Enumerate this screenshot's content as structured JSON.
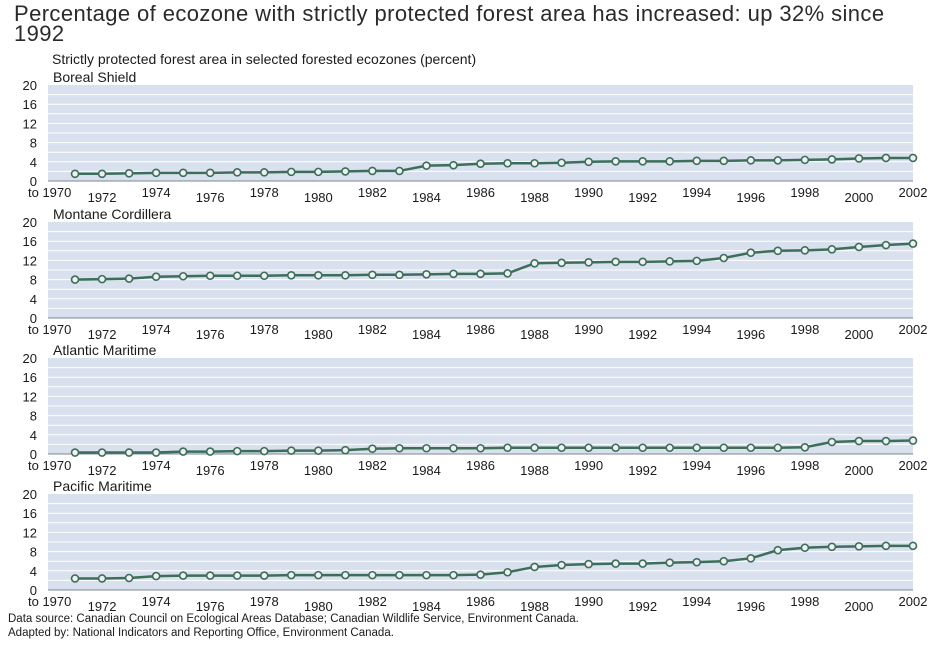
{
  "title": "Percentage of ecozone with strictly protected forest area has increased: up 32% since 1992",
  "subtitle": "Strictly protected forest area in selected forested ecozones (percent)",
  "footer": {
    "source": "Data source: Canadian Council on Ecological Areas Database; Canadian Wildlife Service, Environment Canada.",
    "adapted": "Adapted by: National Indicators and Reporting Office, Environment Canada."
  },
  "colors": {
    "panel_bg": "#d9e0ee",
    "grid": "#ffffff",
    "line": "#3c6e5a",
    "marker_fill": "#f0f0f0",
    "marker_stroke": "#3c6e5a"
  },
  "chart_data": [
    {
      "type": "line",
      "title": "Boreal Shield",
      "x_tick_labels": [
        "to 1970",
        "1972",
        "1974",
        "1976",
        "1978",
        "1980",
        "1982",
        "1984",
        "1986",
        "1988",
        "1990",
        "1992",
        "1994",
        "1996",
        "1998",
        "2000",
        "2002"
      ],
      "x": [
        "to 1970",
        1971,
        1972,
        1973,
        1974,
        1975,
        1976,
        1977,
        1978,
        1979,
        1980,
        1981,
        1982,
        1983,
        1984,
        1985,
        1986,
        1987,
        1988,
        1989,
        1990,
        1991,
        1992,
        1993,
        1994,
        1995,
        1996,
        1997,
        1998,
        1999,
        2000,
        2001
      ],
      "values": [
        1.5,
        1.5,
        1.6,
        1.7,
        1.7,
        1.7,
        1.8,
        1.8,
        1.9,
        1.9,
        2.0,
        2.1,
        2.1,
        3.2,
        3.3,
        3.6,
        3.7,
        3.7,
        3.8,
        4.0,
        4.1,
        4.1,
        4.1,
        4.2,
        4.2,
        4.3,
        4.3,
        4.4,
        4.5,
        4.7,
        4.8,
        4.8
      ],
      "ylim": [
        0,
        20
      ],
      "yticks": [
        0,
        4,
        8,
        12,
        16,
        20
      ],
      "grid": true
    },
    {
      "type": "line",
      "title": "Montane Cordillera",
      "x_tick_labels": [
        "to 1970",
        "1972",
        "1974",
        "1976",
        "1978",
        "1980",
        "1982",
        "1984",
        "1986",
        "1988",
        "1990",
        "1992",
        "1994",
        "1996",
        "1998",
        "2000",
        "2002"
      ],
      "x": [
        "to 1970",
        1971,
        1972,
        1973,
        1974,
        1975,
        1976,
        1977,
        1978,
        1979,
        1980,
        1981,
        1982,
        1983,
        1984,
        1985,
        1986,
        1987,
        1988,
        1989,
        1990,
        1991,
        1992,
        1993,
        1994,
        1995,
        1996,
        1997,
        1998,
        1999,
        2000,
        2001
      ],
      "values": [
        8.0,
        8.1,
        8.2,
        8.6,
        8.7,
        8.8,
        8.8,
        8.8,
        8.9,
        8.9,
        8.9,
        9.0,
        9.0,
        9.1,
        9.2,
        9.2,
        9.3,
        11.4,
        11.5,
        11.6,
        11.7,
        11.7,
        11.8,
        11.9,
        12.5,
        13.6,
        14.0,
        14.1,
        14.3,
        14.8,
        15.2,
        15.5
      ],
      "ylim": [
        0,
        20
      ],
      "yticks": [
        0,
        4,
        8,
        12,
        16,
        20
      ],
      "grid": true
    },
    {
      "type": "line",
      "title": "Atlantic Maritime",
      "x_tick_labels": [
        "to 1970",
        "1972",
        "1974",
        "1976",
        "1978",
        "1980",
        "1982",
        "1984",
        "1986",
        "1988",
        "1990",
        "1992",
        "1994",
        "1996",
        "1998",
        "2000",
        "2002"
      ],
      "x": [
        "to 1970",
        1971,
        1972,
        1973,
        1974,
        1975,
        1976,
        1977,
        1978,
        1979,
        1980,
        1981,
        1982,
        1983,
        1984,
        1985,
        1986,
        1987,
        1988,
        1989,
        1990,
        1991,
        1992,
        1993,
        1994,
        1995,
        1996,
        1997,
        1998,
        1999,
        2000,
        2001
      ],
      "values": [
        0.3,
        0.3,
        0.3,
        0.3,
        0.5,
        0.5,
        0.6,
        0.6,
        0.7,
        0.7,
        0.8,
        1.1,
        1.2,
        1.2,
        1.2,
        1.2,
        1.3,
        1.3,
        1.3,
        1.3,
        1.3,
        1.3,
        1.3,
        1.3,
        1.3,
        1.3,
        1.3,
        1.4,
        2.5,
        2.7,
        2.7,
        2.8
      ],
      "ylim": [
        0,
        20
      ],
      "yticks": [
        0,
        4,
        8,
        12,
        16,
        20
      ],
      "grid": true
    },
    {
      "type": "line",
      "title": "Pacific Maritime",
      "x_tick_labels": [
        "to 1970",
        "1972",
        "1974",
        "1976",
        "1978",
        "1980",
        "1982",
        "1984",
        "1986",
        "1988",
        "1990",
        "1992",
        "1994",
        "1996",
        "1998",
        "2000",
        "2002"
      ],
      "x": [
        "to 1970",
        1971,
        1972,
        1973,
        1974,
        1975,
        1976,
        1977,
        1978,
        1979,
        1980,
        1981,
        1982,
        1983,
        1984,
        1985,
        1986,
        1987,
        1988,
        1989,
        1990,
        1991,
        1992,
        1993,
        1994,
        1995,
        1996,
        1997,
        1998,
        1999,
        2000,
        2001
      ],
      "values": [
        2.4,
        2.4,
        2.5,
        2.9,
        3.0,
        3.0,
        3.0,
        3.0,
        3.1,
        3.1,
        3.1,
        3.1,
        3.1,
        3.1,
        3.1,
        3.2,
        3.7,
        4.8,
        5.2,
        5.4,
        5.5,
        5.5,
        5.7,
        5.8,
        6.0,
        6.6,
        8.3,
        8.8,
        9.0,
        9.1,
        9.2,
        9.2
      ],
      "ylim": [
        0,
        20
      ],
      "yticks": [
        0,
        4,
        8,
        12,
        16,
        20
      ],
      "grid": true
    }
  ]
}
